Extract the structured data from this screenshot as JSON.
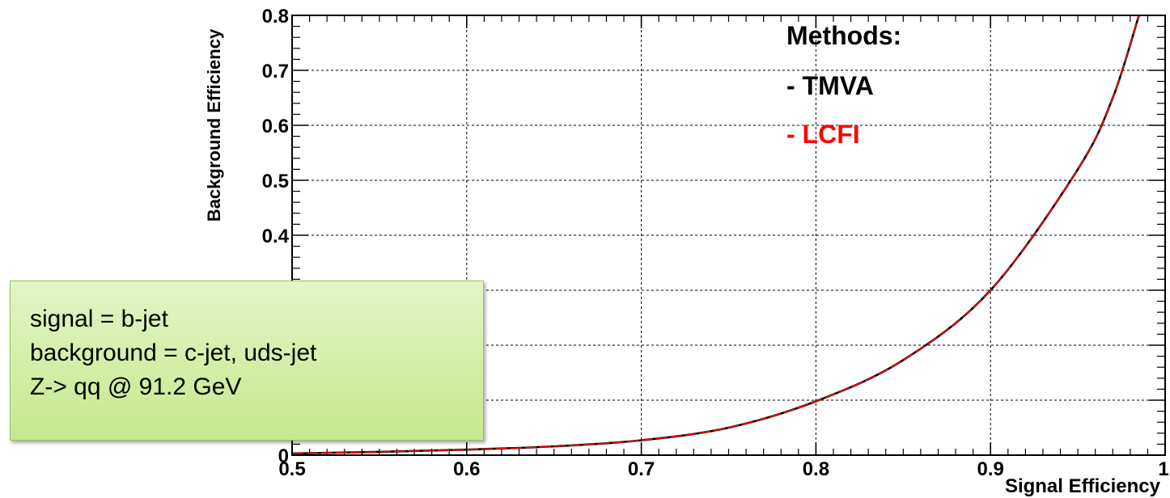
{
  "chart_data": {
    "type": "line",
    "xlabel": "Signal Efficiency",
    "ylabel": "Background Efficiency",
    "xlim": [
      0.5,
      1.0
    ],
    "ylim": [
      0,
      0.8
    ],
    "x_ticks": [
      0.5,
      0.6,
      0.7,
      0.8,
      0.9,
      1.0
    ],
    "x_tick_labels": [
      "0.5",
      "0.6",
      "0.7",
      "0.8",
      "0.9",
      "1"
    ],
    "y_ticks": [
      0,
      0.1,
      0.2,
      0.3,
      0.4,
      0.5,
      0.6,
      0.7,
      0.8
    ],
    "y_tick_labels": [
      "0",
      "0.1",
      "0.2",
      "0.3",
      "0.4",
      "0.5",
      "0.6",
      "0.7",
      "0.8"
    ],
    "grid": true,
    "series": [
      {
        "name": "- TMVA",
        "color": "#000000",
        "x": [
          0.5,
          0.55,
          0.6,
          0.65,
          0.7,
          0.75,
          0.8,
          0.85,
          0.9,
          0.95,
          0.97,
          0.985
        ],
        "y": [
          0.003,
          0.006,
          0.01,
          0.016,
          0.027,
          0.05,
          0.098,
          0.173,
          0.3,
          0.52,
          0.65,
          0.8
        ]
      },
      {
        "name": "- LCFI",
        "color": "#ff0000",
        "x": [
          0.5,
          0.55,
          0.6,
          0.65,
          0.7,
          0.75,
          0.8,
          0.85,
          0.9,
          0.95,
          0.97,
          0.985
        ],
        "y": [
          0.003,
          0.006,
          0.01,
          0.016,
          0.027,
          0.05,
          0.098,
          0.173,
          0.3,
          0.52,
          0.65,
          0.8
        ]
      }
    ],
    "legend": {
      "title": "Methods:",
      "placement": "top-right"
    }
  },
  "note": {
    "lines": [
      "signal = b-jet",
      "background = c-jet, uds-jet",
      "Z-> qq @ 91.2 GeV"
    ]
  }
}
